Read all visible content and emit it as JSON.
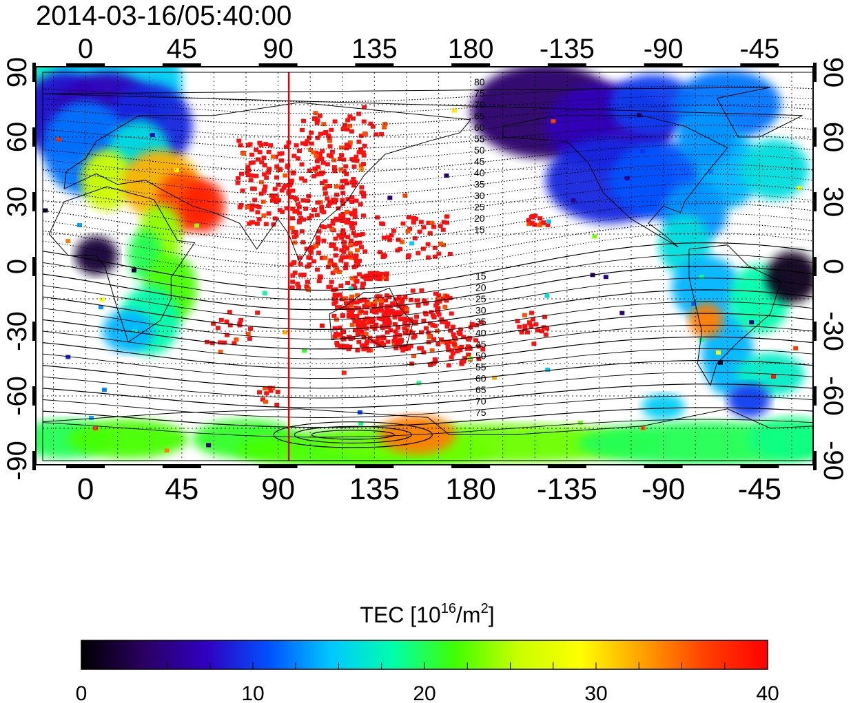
{
  "title": "2014-03-16/05:40:00",
  "colorbar": {
    "label_prefix": "TEC  [10",
    "label_exp1": "16",
    "label_mid": "/m",
    "label_exp2": "2",
    "label_suffix": "]",
    "range": [
      0,
      40
    ],
    "ticks": [
      "0",
      "10",
      "20",
      "30",
      "40"
    ],
    "stops": [
      "#000000",
      "#2a0060",
      "#3000c0",
      "#0050ff",
      "#00c8ff",
      "#00ffaa",
      "#40ff00",
      "#c8ff00",
      "#ffff00",
      "#ffa000",
      "#ff4000",
      "#ff0000"
    ]
  },
  "map": {
    "lon_ticks_top": [
      "0",
      "45",
      "90",
      "135",
      "180",
      "-135",
      "-90",
      "-45"
    ],
    "lon_ticks_bottom": [
      "0",
      "45",
      "90",
      "135",
      "180",
      "-135",
      "-90",
      "-45"
    ],
    "lat_ticks_left": [
      "90",
      "60",
      "30",
      "0",
      "-30",
      "-60",
      "-90"
    ],
    "lat_ticks_right": [
      "90",
      "60",
      "30",
      "0",
      "-30",
      "-60",
      "-90"
    ],
    "contour_labels_north": [
      "80",
      "75",
      "70",
      "65",
      "60",
      "55",
      "50",
      "45",
      "40",
      "35",
      "30",
      "25",
      "20",
      "15"
    ],
    "contour_labels_south": [
      "15",
      "20",
      "25",
      "30",
      "35",
      "40",
      "45",
      "50",
      "55",
      "60",
      "65",
      "70",
      "75"
    ],
    "subsolar_marker_lon": 95,
    "marker_color": "#e00000"
  }
}
